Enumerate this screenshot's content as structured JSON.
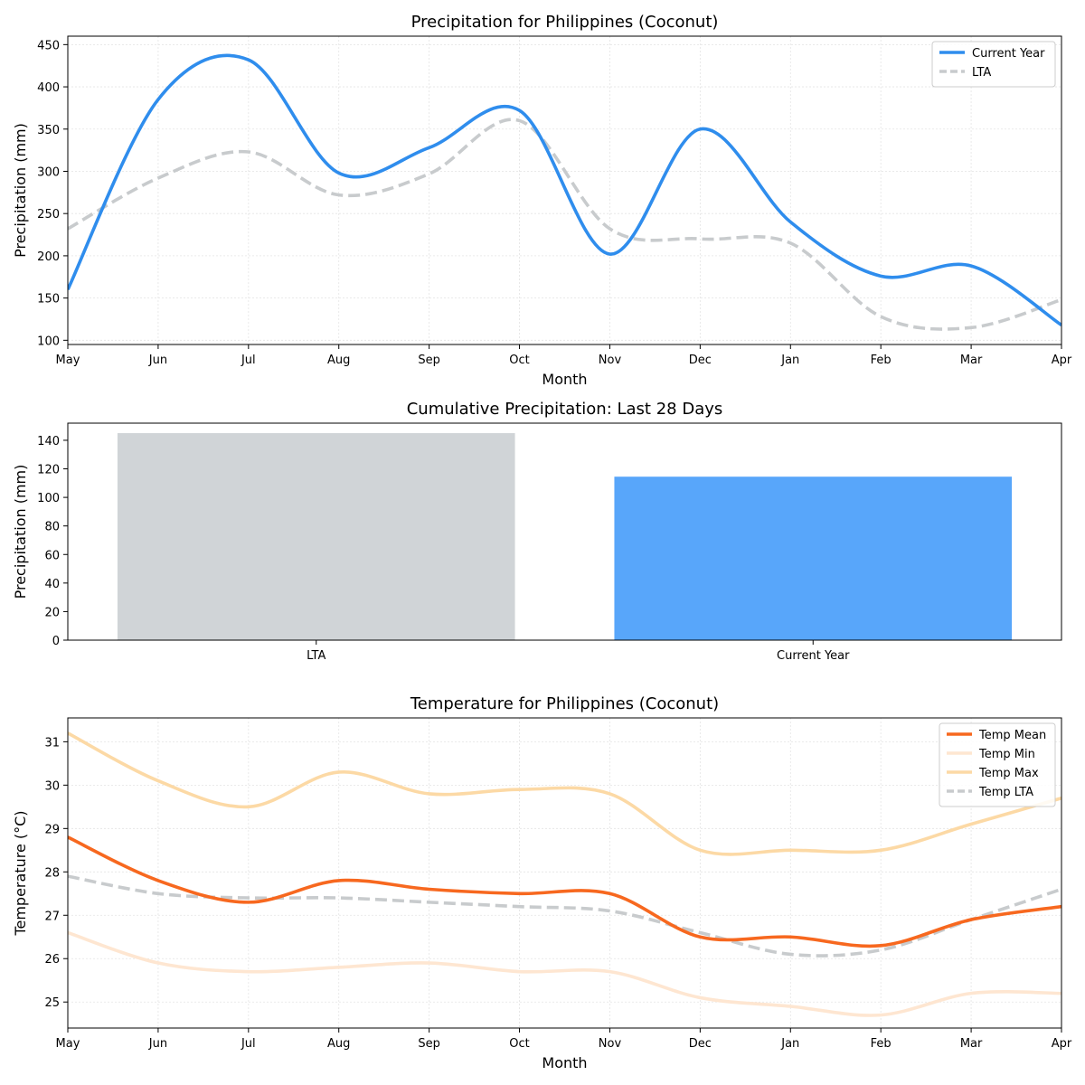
{
  "chart_data": [
    {
      "type": "line",
      "title": "Precipitation for Philippines (Coconut)",
      "xlabel": "Month",
      "ylabel": "Precipitation (mm)",
      "categories": [
        "May",
        "Jun",
        "Jul",
        "Aug",
        "Sep",
        "Oct",
        "Nov",
        "Dec",
        "Jan",
        "Feb",
        "Mar",
        "Apr"
      ],
      "ylim": [
        95,
        460
      ],
      "yticks": [
        100,
        150,
        200,
        250,
        300,
        350,
        400,
        450
      ],
      "grid": true,
      "legend": "top-right",
      "series": [
        {
          "name": "Current Year",
          "color": "#2f8ded",
          "style": "solid",
          "values": [
            160,
            385,
            432,
            298,
            328,
            372,
            202,
            350,
            240,
            176,
            188,
            118
          ]
        },
        {
          "name": "LTA",
          "color": "#c8cbcd",
          "style": "dashed",
          "values": [
            232,
            292,
            323,
            272,
            297,
            360,
            232,
            220,
            215,
            128,
            115,
            148
          ]
        }
      ]
    },
    {
      "type": "bar",
      "title": "Cumulative Precipitation: Last 28 Days",
      "ylabel": "Precipitation (mm)",
      "categories": [
        "LTA",
        "Current Year"
      ],
      "values": [
        145,
        114.5
      ],
      "colors": [
        "#d0d4d7",
        "#58a6fa"
      ],
      "ylim": [
        0,
        152
      ],
      "yticks": [
        0,
        20,
        40,
        60,
        80,
        100,
        120,
        140
      ],
      "grid": false
    },
    {
      "type": "line",
      "title": "Temperature for Philippines (Coconut)",
      "xlabel": "Month",
      "ylabel": "Temperature (°C)",
      "categories": [
        "May",
        "Jun",
        "Jul",
        "Aug",
        "Sep",
        "Oct",
        "Nov",
        "Dec",
        "Jan",
        "Feb",
        "Mar",
        "Apr"
      ],
      "ylim": [
        24.4,
        31.55
      ],
      "yticks": [
        25,
        26,
        27,
        28,
        29,
        30,
        31
      ],
      "grid": true,
      "legend": "top-right",
      "series": [
        {
          "name": "Temp Mean",
          "color": "#f7681f",
          "style": "solid",
          "values": [
            28.8,
            27.8,
            27.3,
            27.8,
            27.6,
            27.5,
            27.5,
            26.5,
            26.5,
            26.3,
            26.9,
            27.2
          ]
        },
        {
          "name": "Temp Min",
          "color": "#fee6d1",
          "style": "solid",
          "values": [
            26.6,
            25.9,
            25.7,
            25.8,
            25.9,
            25.7,
            25.7,
            25.1,
            24.9,
            24.7,
            25.2,
            25.2
          ]
        },
        {
          "name": "Temp Max",
          "color": "#fcd9a5",
          "style": "solid",
          "values": [
            31.2,
            30.1,
            29.5,
            30.3,
            29.8,
            29.9,
            29.8,
            28.5,
            28.5,
            28.5,
            29.1,
            29.7
          ]
        },
        {
          "name": "Temp LTA",
          "color": "#c8cbcd",
          "style": "dashed",
          "values": [
            27.9,
            27.5,
            27.4,
            27.4,
            27.3,
            27.2,
            27.1,
            26.6,
            26.1,
            26.2,
            26.9,
            27.6
          ]
        }
      ]
    }
  ]
}
